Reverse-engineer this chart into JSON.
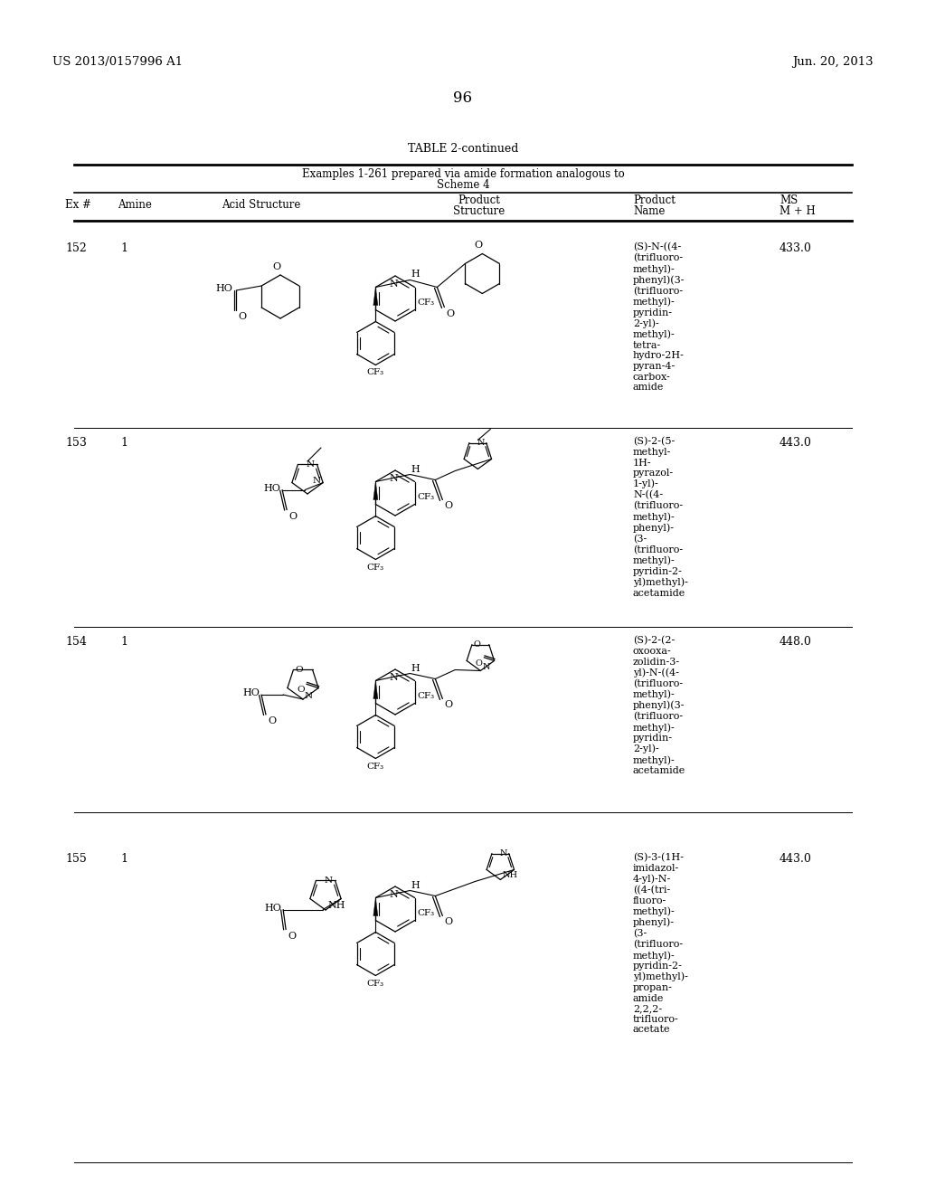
{
  "page_number": "96",
  "patent_number": "US 2013/0157996 A1",
  "patent_date": "Jun. 20, 2013",
  "table_title": "TABLE 2-continued",
  "table_subtitle_line1": "Examples 1-261 prepared via amide formation analogous to",
  "table_subtitle_line2": "Scheme 4",
  "background_color": "#ffffff",
  "text_color": "#000000",
  "rows": [
    {
      "ex": "152",
      "amine": "1",
      "ms": "433.0",
      "product_name": "(S)-N-((4-\n(trifluoro-\nmethyl)-\nphenyl)(3-\n(trifluoro-\nmethyl)-\npyridin-\n2-yl)-\nmethyl)-\ntetra-\nhydro-2H-\npyran-4-\ncarbox-\namide"
    },
    {
      "ex": "153",
      "amine": "1",
      "ms": "443.0",
      "product_name": "(S)-2-(5-\nmethyl-\n1H-\npyrazol-\n1-yl)-\nN-((4-\n(trifluoro-\nmethyl)-\nphenyl)-\n(3-\n(trifluoro-\nmethyl)-\npyridin-2-\nyl)methyl)-\nacetamide"
    },
    {
      "ex": "154",
      "amine": "1",
      "ms": "448.0",
      "product_name": "(S)-2-(2-\noxooxa-\nzolidin-3-\nyl)-N-((4-\n(trifluoro-\nmethyl)-\nphenyl)(3-\n(trifluoro-\nmethyl)-\npyridin-\n2-yl)-\nmethyl)-\nacetamide"
    },
    {
      "ex": "155",
      "amine": "1",
      "ms": "443.0",
      "product_name": "(S)-3-(1H-\nimidazol-\n4-yl)-N-\n((4-(tri-\nfluoro-\nmethyl)-\nphenyl)-\n(3-\n(trifluoro-\nmethyl)-\npyridin-2-\nyl)methyl)-\npropan-\namide\n2,2,2-\ntrifluoro-\nacetate"
    }
  ]
}
